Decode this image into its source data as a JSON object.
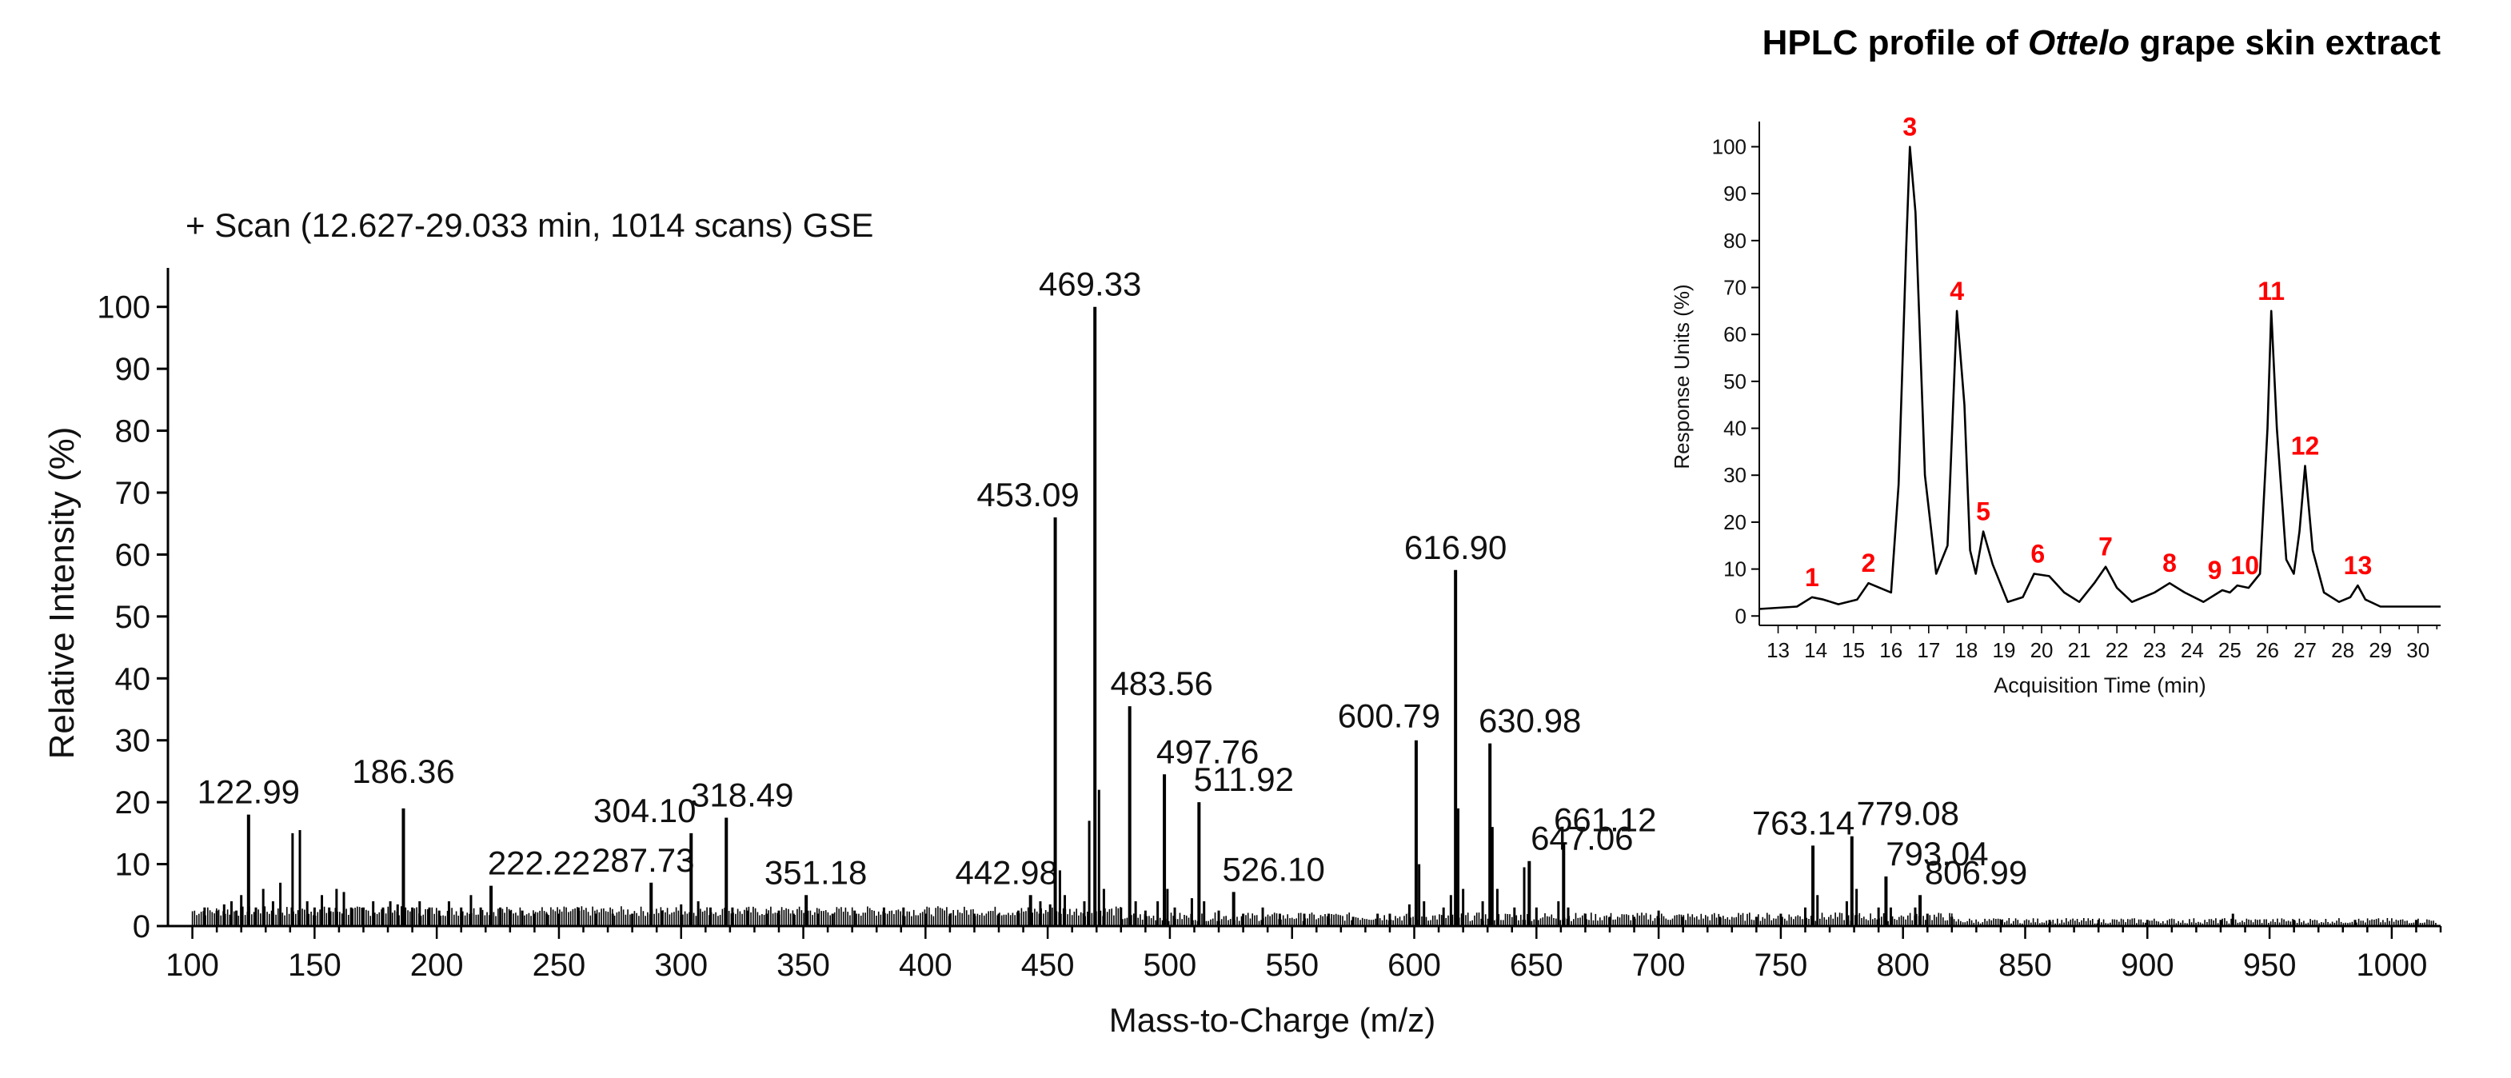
{
  "chart_data": [
    {
      "type": "bar",
      "title": "+ Scan (12.627-29.033 min, 1014 scans) GSE",
      "xlabel": "Mass-to-Charge (m/z)",
      "ylabel": "Relative Intensity (%)",
      "xlim": [
        90,
        1020
      ],
      "ylim": [
        0,
        105
      ],
      "x_ticks": [
        100,
        150,
        200,
        250,
        300,
        350,
        400,
        450,
        500,
        550,
        600,
        650,
        700,
        750,
        800,
        850,
        900,
        950,
        1000
      ],
      "y_ticks": [
        0,
        10,
        20,
        30,
        40,
        50,
        60,
        70,
        80,
        90,
        100
      ],
      "grid": false,
      "peaks": [
        {
          "mz": 122.99,
          "intensity": 18,
          "label": "122.99"
        },
        {
          "mz": 186.36,
          "intensity": 19,
          "label": "186.36"
        },
        {
          "mz": 222.22,
          "intensity": 6.5,
          "label": "222.22"
        },
        {
          "mz": 287.73,
          "intensity": 7,
          "label": "287.73"
        },
        {
          "mz": 304.1,
          "intensity": 15,
          "label": "304.10"
        },
        {
          "mz": 318.49,
          "intensity": 17.5,
          "label": "318.49"
        },
        {
          "mz": 351.18,
          "intensity": 5,
          "label": "351.18"
        },
        {
          "mz": 442.98,
          "intensity": 5,
          "label": "442.98"
        },
        {
          "mz": 453.09,
          "intensity": 66,
          "label": "453.09"
        },
        {
          "mz": 469.33,
          "intensity": 100,
          "label": "469.33"
        },
        {
          "mz": 483.56,
          "intensity": 35.5,
          "label": "483.56"
        },
        {
          "mz": 497.76,
          "intensity": 24.5,
          "label": "497.76"
        },
        {
          "mz": 511.92,
          "intensity": 20,
          "label": "511.92"
        },
        {
          "mz": 526.1,
          "intensity": 5.5,
          "label": "526.10"
        },
        {
          "mz": 600.79,
          "intensity": 30,
          "label": "600.79"
        },
        {
          "mz": 616.9,
          "intensity": 57.5,
          "label": "616.90"
        },
        {
          "mz": 630.98,
          "intensity": 29.5,
          "label": "630.98"
        },
        {
          "mz": 647.06,
          "intensity": 10.5,
          "label": "647.06"
        },
        {
          "mz": 661.12,
          "intensity": 13.5,
          "label": "661.12"
        },
        {
          "mz": 763.14,
          "intensity": 13,
          "label": "763.14"
        },
        {
          "mz": 779.08,
          "intensity": 14.5,
          "label": "779.08"
        },
        {
          "mz": 793.04,
          "intensity": 8,
          "label": "793.04"
        },
        {
          "mz": 806.99,
          "intensity": 5,
          "label": "806.99"
        }
      ],
      "minor_peaks": [
        [
          105,
          3
        ],
        [
          110,
          2.5
        ],
        [
          113,
          3.5
        ],
        [
          116,
          4
        ],
        [
          118,
          2.5
        ],
        [
          120,
          5
        ],
        [
          126,
          3
        ],
        [
          129,
          6
        ],
        [
          133,
          4
        ],
        [
          136,
          7
        ],
        [
          141,
          15
        ],
        [
          144,
          15.5
        ],
        [
          147,
          4
        ],
        [
          150,
          3
        ],
        [
          153,
          5
        ],
        [
          156,
          3
        ],
        [
          159,
          6
        ],
        [
          162,
          5.5
        ],
        [
          165,
          3
        ],
        [
          170,
          3
        ],
        [
          174,
          4
        ],
        [
          178,
          3
        ],
        [
          181,
          4
        ],
        [
          184,
          3.5
        ],
        [
          190,
          3
        ],
        [
          193,
          4
        ],
        [
          197,
          3
        ],
        [
          201,
          2.5
        ],
        [
          205,
          4
        ],
        [
          210,
          3
        ],
        [
          214,
          5
        ],
        [
          218,
          3
        ],
        [
          226,
          3
        ],
        [
          230,
          2.5
        ],
        [
          235,
          2.5
        ],
        [
          240,
          2
        ],
        [
          245,
          2
        ],
        [
          250,
          2
        ],
        [
          258,
          3
        ],
        [
          265,
          2
        ],
        [
          272,
          2
        ],
        [
          280,
          2
        ],
        [
          292,
          2.5
        ],
        [
          300,
          3.5
        ],
        [
          307,
          4
        ],
        [
          312,
          3
        ],
        [
          321,
          3
        ],
        [
          327,
          2.5
        ],
        [
          335,
          2
        ],
        [
          340,
          2.5
        ],
        [
          346,
          2
        ],
        [
          356,
          2
        ],
        [
          362,
          2
        ],
        [
          371,
          2.5
        ],
        [
          383,
          3
        ],
        [
          391,
          3
        ],
        [
          400,
          2
        ],
        [
          410,
          2
        ],
        [
          420,
          2
        ],
        [
          430,
          2
        ],
        [
          438,
          2.5
        ],
        [
          447,
          4
        ],
        [
          451,
          3.5
        ],
        [
          455,
          9
        ],
        [
          457,
          5
        ],
        [
          465,
          4
        ],
        [
          467,
          17
        ],
        [
          471,
          22
        ],
        [
          473,
          6
        ],
        [
          480,
          3
        ],
        [
          486,
          4
        ],
        [
          490,
          2.5
        ],
        [
          495,
          4
        ],
        [
          499,
          6
        ],
        [
          502,
          3
        ],
        [
          509,
          4.5
        ],
        [
          514,
          4
        ],
        [
          520,
          2.5
        ],
        [
          530,
          2
        ],
        [
          538,
          3
        ],
        [
          545,
          2
        ],
        [
          555,
          2
        ],
        [
          565,
          2
        ],
        [
          575,
          1.5
        ],
        [
          585,
          2
        ],
        [
          590,
          2
        ],
        [
          598,
          3.5
        ],
        [
          602,
          10
        ],
        [
          604,
          4
        ],
        [
          612,
          3
        ],
        [
          615,
          5
        ],
        [
          618,
          19
        ],
        [
          620,
          6
        ],
        [
          628,
          4
        ],
        [
          632,
          16
        ],
        [
          634,
          6
        ],
        [
          641,
          3
        ],
        [
          645,
          9.5
        ],
        [
          650,
          3
        ],
        [
          659,
          4
        ],
        [
          663,
          3
        ],
        [
          670,
          2
        ],
        [
          680,
          1.5
        ],
        [
          690,
          1.5
        ],
        [
          700,
          2.5
        ],
        [
          710,
          1.5
        ],
        [
          725,
          1.5
        ],
        [
          740,
          1.5
        ],
        [
          750,
          2
        ],
        [
          760,
          3
        ],
        [
          765,
          5
        ],
        [
          777,
          4
        ],
        [
          781,
          6
        ],
        [
          790,
          3
        ],
        [
          795,
          3
        ],
        [
          805,
          3
        ],
        [
          810,
          2
        ],
        [
          820,
          1.5
        ],
        [
          840,
          1
        ],
        [
          860,
          1
        ],
        [
          880,
          1
        ],
        [
          900,
          1
        ],
        [
          930,
          1
        ],
        [
          935,
          2
        ],
        [
          960,
          1
        ],
        [
          985,
          1
        ],
        [
          1010,
          1
        ]
      ]
    },
    {
      "type": "line",
      "title": "HPLC profile of Ottelo grape skin extract",
      "title_parts": [
        "HPLC profile of ",
        "Ottelo",
        " grape skin extract"
      ],
      "xlabel": "Acquisition Time (min)",
      "ylabel": "Response Units (%)",
      "xlim": [
        12.5,
        30.6
      ],
      "ylim": [
        -2,
        104
      ],
      "x_ticks": [
        13,
        14,
        15,
        16,
        17,
        18,
        19,
        20,
        21,
        22,
        23,
        24,
        25,
        26,
        27,
        28,
        29,
        30
      ],
      "y_ticks": [
        0,
        10,
        20,
        30,
        40,
        50,
        60,
        70,
        80,
        90,
        100
      ],
      "grid": false,
      "peak_label_color": "#ff0000",
      "baseline_level": 1.5,
      "trace": [
        [
          12.5,
          1.5
        ],
        [
          13.5,
          2
        ],
        [
          13.9,
          4
        ],
        [
          14.2,
          3.5
        ],
        [
          14.6,
          2.5
        ],
        [
          15.1,
          3.5
        ],
        [
          15.4,
          7
        ],
        [
          15.7,
          6
        ],
        [
          16.0,
          5
        ],
        [
          16.2,
          28
        ],
        [
          16.4,
          78
        ],
        [
          16.5,
          100
        ],
        [
          16.65,
          86
        ],
        [
          16.9,
          30
        ],
        [
          17.2,
          9
        ],
        [
          17.5,
          15
        ],
        [
          17.75,
          65
        ],
        [
          17.95,
          45
        ],
        [
          18.1,
          14
        ],
        [
          18.25,
          9
        ],
        [
          18.45,
          18
        ],
        [
          18.7,
          11
        ],
        [
          19.1,
          3
        ],
        [
          19.5,
          4
        ],
        [
          19.8,
          9
        ],
        [
          20.2,
          8.5
        ],
        [
          20.6,
          5
        ],
        [
          21.0,
          3
        ],
        [
          21.4,
          7
        ],
        [
          21.7,
          10.5
        ],
        [
          22.0,
          6
        ],
        [
          22.4,
          3
        ],
        [
          23.0,
          5
        ],
        [
          23.4,
          7
        ],
        [
          23.8,
          5
        ],
        [
          24.3,
          3
        ],
        [
          24.8,
          5.5
        ],
        [
          25.0,
          5
        ],
        [
          25.2,
          6.5
        ],
        [
          25.5,
          6
        ],
        [
          25.8,
          9
        ],
        [
          26.0,
          40
        ],
        [
          26.1,
          65
        ],
        [
          26.25,
          40
        ],
        [
          26.5,
          12
        ],
        [
          26.7,
          9
        ],
        [
          26.85,
          18
        ],
        [
          27.0,
          32
        ],
        [
          27.2,
          14
        ],
        [
          27.5,
          5
        ],
        [
          27.9,
          3
        ],
        [
          28.2,
          4
        ],
        [
          28.4,
          6.5
        ],
        [
          28.6,
          3.5
        ],
        [
          29.0,
          2
        ],
        [
          30.0,
          2
        ],
        [
          30.6,
          2
        ]
      ],
      "peak_labels": [
        {
          "label": "1",
          "x": 13.9,
          "y": 4
        },
        {
          "label": "2",
          "x": 15.4,
          "y": 7
        },
        {
          "label": "3",
          "x": 16.5,
          "y": 100
        },
        {
          "label": "4",
          "x": 17.75,
          "y": 65
        },
        {
          "label": "5",
          "x": 18.45,
          "y": 18
        },
        {
          "label": "6",
          "x": 19.9,
          "y": 9
        },
        {
          "label": "7",
          "x": 21.7,
          "y": 10.5
        },
        {
          "label": "8",
          "x": 23.4,
          "y": 7
        },
        {
          "label": "9",
          "x": 24.6,
          "y": 5.5
        },
        {
          "label": "10",
          "x": 25.4,
          "y": 6.5
        },
        {
          "label": "11",
          "x": 26.1,
          "y": 65
        },
        {
          "label": "12",
          "x": 27.0,
          "y": 32
        },
        {
          "label": "13",
          "x": 28.4,
          "y": 6.5
        }
      ]
    }
  ]
}
